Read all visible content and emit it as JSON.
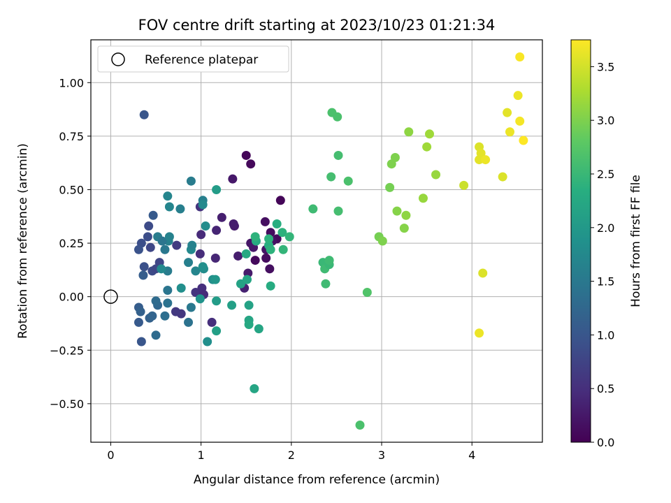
{
  "chart_data": {
    "type": "scatter",
    "title": "FOV centre drift starting at 2023/10/23 01:21:34",
    "xlabel": "Angular distance from reference (arcmin)",
    "ylabel": "Rotation from reference (arcmin)",
    "xlim": [
      -0.22,
      4.78
    ],
    "ylim": [
      -0.68,
      1.2
    ],
    "xticks": [
      0,
      1,
      2,
      3,
      4
    ],
    "yticks": [
      -0.5,
      -0.25,
      0.0,
      0.25,
      0.5,
      0.75,
      1.0
    ],
    "xtick_labels": [
      "0",
      "1",
      "2",
      "3",
      "4"
    ],
    "ytick_labels": [
      "−0.50",
      "−0.25",
      "0.00",
      "0.25",
      "0.50",
      "0.75",
      "1.00"
    ],
    "grid": true,
    "legend": {
      "position": "top-left",
      "entries": [
        "Reference platepar"
      ]
    },
    "reference_point": {
      "x": 0,
      "y": 0
    },
    "colorbar": {
      "label": "Hours from first FF file",
      "colormap": "viridis",
      "range": [
        0.0,
        3.75
      ],
      "ticks": [
        0.0,
        0.5,
        1.0,
        1.5,
        2.0,
        2.5,
        3.0,
        3.5
      ],
      "tick_labels": [
        "0.0",
        "0.5",
        "1.0",
        "1.5",
        "2.0",
        "2.5",
        "3.0",
        "3.5"
      ]
    },
    "points": [
      {
        "x": 1.5,
        "y": 0.66,
        "c": 0.05
      },
      {
        "x": 1.55,
        "y": 0.62,
        "c": 0.08
      },
      {
        "x": 1.35,
        "y": 0.55,
        "c": 0.25
      },
      {
        "x": 1.88,
        "y": 0.45,
        "c": 0.05
      },
      {
        "x": 1.23,
        "y": 0.37,
        "c": 0.32
      },
      {
        "x": 1.37,
        "y": 0.33,
        "c": 0.28
      },
      {
        "x": 1.36,
        "y": 0.34,
        "c": 0.3
      },
      {
        "x": 1.71,
        "y": 0.35,
        "c": 0.15
      },
      {
        "x": 1.17,
        "y": 0.31,
        "c": 0.38
      },
      {
        "x": 1.0,
        "y": 0.29,
        "c": 0.45
      },
      {
        "x": 1.77,
        "y": 0.3,
        "c": 0.12
      },
      {
        "x": 1.84,
        "y": 0.27,
        "c": 0.1
      },
      {
        "x": 1.79,
        "y": 0.26,
        "c": 0.18
      },
      {
        "x": 1.55,
        "y": 0.25,
        "c": 0.22
      },
      {
        "x": 1.58,
        "y": 0.23,
        "c": 0.25
      },
      {
        "x": 1.72,
        "y": 0.22,
        "c": 0.2
      },
      {
        "x": 1.41,
        "y": 0.19,
        "c": 0.3
      },
      {
        "x": 0.99,
        "y": 0.2,
        "c": 0.48
      },
      {
        "x": 1.72,
        "y": 0.18,
        "c": 0.12
      },
      {
        "x": 1.6,
        "y": 0.17,
        "c": 0.1
      },
      {
        "x": 1.16,
        "y": 0.18,
        "c": 0.4
      },
      {
        "x": 1.76,
        "y": 0.13,
        "c": 0.15
      },
      {
        "x": 1.52,
        "y": 0.11,
        "c": 0.28
      },
      {
        "x": 0.94,
        "y": 0.02,
        "c": 0.55
      },
      {
        "x": 1.01,
        "y": 0.04,
        "c": 0.5
      },
      {
        "x": 1.03,
        "y": 0.01,
        "c": 0.45
      },
      {
        "x": 1.48,
        "y": 0.04,
        "c": 0.35
      },
      {
        "x": 0.99,
        "y": 0.42,
        "c": 0.55
      },
      {
        "x": 0.78,
        "y": -0.08,
        "c": 0.6
      },
      {
        "x": 0.72,
        "y": -0.07,
        "c": 0.62
      },
      {
        "x": 1.12,
        "y": -0.12,
        "c": 0.5
      },
      {
        "x": 0.73,
        "y": 0.24,
        "c": 0.65
      },
      {
        "x": 0.37,
        "y": 0.85,
        "c": 1.0
      },
      {
        "x": 0.34,
        "y": 0.25,
        "c": 0.9
      },
      {
        "x": 0.42,
        "y": 0.33,
        "c": 0.85
      },
      {
        "x": 0.41,
        "y": 0.28,
        "c": 0.88
      },
      {
        "x": 0.44,
        "y": 0.23,
        "c": 0.8
      },
      {
        "x": 0.31,
        "y": 0.22,
        "c": 0.95
      },
      {
        "x": 0.37,
        "y": 0.14,
        "c": 0.92
      },
      {
        "x": 0.46,
        "y": 0.12,
        "c": 0.85
      },
      {
        "x": 0.5,
        "y": 0.13,
        "c": 0.8
      },
      {
        "x": 0.54,
        "y": 0.16,
        "c": 0.78
      },
      {
        "x": 0.47,
        "y": 0.38,
        "c": 1.05
      },
      {
        "x": 0.36,
        "y": 0.1,
        "c": 1.1
      },
      {
        "x": 0.31,
        "y": -0.05,
        "c": 1.1
      },
      {
        "x": 0.33,
        "y": -0.07,
        "c": 1.15
      },
      {
        "x": 0.31,
        "y": -0.12,
        "c": 1.05
      },
      {
        "x": 0.34,
        "y": -0.21,
        "c": 1.0
      },
      {
        "x": 0.43,
        "y": -0.1,
        "c": 1.15
      },
      {
        "x": 0.46,
        "y": -0.09,
        "c": 1.2
      },
      {
        "x": 0.52,
        "y": -0.04,
        "c": 1.25
      },
      {
        "x": 0.5,
        "y": -0.02,
        "c": 1.3
      },
      {
        "x": 0.5,
        "y": -0.18,
        "c": 1.3
      },
      {
        "x": 0.6,
        "y": -0.09,
        "c": 1.35
      },
      {
        "x": 0.63,
        "y": -0.03,
        "c": 1.4
      },
      {
        "x": 0.63,
        "y": 0.03,
        "c": 1.45
      },
      {
        "x": 0.86,
        "y": -0.12,
        "c": 1.4
      },
      {
        "x": 0.89,
        "y": -0.05,
        "c": 1.5
      },
      {
        "x": 0.63,
        "y": 0.12,
        "c": 1.55
      },
      {
        "x": 0.64,
        "y": 0.26,
        "c": 1.6
      },
      {
        "x": 0.6,
        "y": 0.22,
        "c": 1.5
      },
      {
        "x": 0.52,
        "y": 0.28,
        "c": 1.55
      },
      {
        "x": 0.57,
        "y": 0.26,
        "c": 1.45
      },
      {
        "x": 0.65,
        "y": 0.28,
        "c": 1.65
      },
      {
        "x": 0.77,
        "y": 0.41,
        "c": 1.6
      },
      {
        "x": 0.63,
        "y": 0.47,
        "c": 1.7
      },
      {
        "x": 0.65,
        "y": 0.42,
        "c": 1.7
      },
      {
        "x": 0.89,
        "y": 0.54,
        "c": 1.55
      },
      {
        "x": 0.86,
        "y": 0.16,
        "c": 1.6
      },
      {
        "x": 0.89,
        "y": 0.22,
        "c": 1.75
      },
      {
        "x": 0.9,
        "y": 0.24,
        "c": 1.65
      },
      {
        "x": 0.94,
        "y": 0.12,
        "c": 1.7
      },
      {
        "x": 1.02,
        "y": 0.45,
        "c": 1.6
      },
      {
        "x": 1.02,
        "y": 0.43,
        "c": 1.75
      },
      {
        "x": 1.05,
        "y": 0.33,
        "c": 1.8
      },
      {
        "x": 1.03,
        "y": 0.13,
        "c": 1.8
      },
      {
        "x": 1.13,
        "y": 0.08,
        "c": 1.85
      },
      {
        "x": 1.02,
        "y": 0.14,
        "c": 1.85
      },
      {
        "x": 0.99,
        "y": -0.01,
        "c": 1.9
      },
      {
        "x": 1.07,
        "y": -0.21,
        "c": 1.85
      },
      {
        "x": 0.78,
        "y": 0.04,
        "c": 1.85
      },
      {
        "x": 0.56,
        "y": 0.13,
        "c": 1.75
      },
      {
        "x": 1.16,
        "y": 0.08,
        "c": 1.95
      },
      {
        "x": 1.17,
        "y": 0.5,
        "c": 2.05
      },
      {
        "x": 1.17,
        "y": -0.02,
        "c": 2.05
      },
      {
        "x": 1.17,
        "y": -0.16,
        "c": 2.1
      },
      {
        "x": 1.34,
        "y": -0.04,
        "c": 2.1
      },
      {
        "x": 1.44,
        "y": 0.06,
        "c": 2.15
      },
      {
        "x": 1.51,
        "y": 0.08,
        "c": 2.2
      },
      {
        "x": 1.53,
        "y": -0.04,
        "c": 2.15
      },
      {
        "x": 1.53,
        "y": -0.11,
        "c": 2.2
      },
      {
        "x": 1.53,
        "y": -0.13,
        "c": 2.25
      },
      {
        "x": 1.64,
        "y": -0.15,
        "c": 2.2
      },
      {
        "x": 1.59,
        "y": -0.43,
        "c": 2.2
      },
      {
        "x": 1.5,
        "y": 0.2,
        "c": 2.25
      },
      {
        "x": 1.61,
        "y": 0.26,
        "c": 2.3
      },
      {
        "x": 1.75,
        "y": 0.24,
        "c": 2.35
      },
      {
        "x": 1.77,
        "y": 0.22,
        "c": 2.4
      },
      {
        "x": 1.77,
        "y": 0.05,
        "c": 2.3
      },
      {
        "x": 1.75,
        "y": 0.27,
        "c": 2.4
      },
      {
        "x": 1.84,
        "y": 0.34,
        "c": 2.35
      },
      {
        "x": 1.9,
        "y": 0.3,
        "c": 2.4
      },
      {
        "x": 1.91,
        "y": 0.22,
        "c": 2.45
      },
      {
        "x": 1.98,
        "y": 0.28,
        "c": 2.45
      },
      {
        "x": 1.6,
        "y": 0.28,
        "c": 2.4
      },
      {
        "x": 2.24,
        "y": 0.41,
        "c": 2.55
      },
      {
        "x": 2.35,
        "y": 0.16,
        "c": 2.5
      },
      {
        "x": 2.37,
        "y": 0.13,
        "c": 2.55
      },
      {
        "x": 2.42,
        "y": 0.15,
        "c": 2.5
      },
      {
        "x": 2.42,
        "y": 0.17,
        "c": 2.55
      },
      {
        "x": 2.38,
        "y": 0.06,
        "c": 2.55
      },
      {
        "x": 2.44,
        "y": 0.56,
        "c": 2.6
      },
      {
        "x": 2.45,
        "y": 0.86,
        "c": 2.65
      },
      {
        "x": 2.51,
        "y": 0.84,
        "c": 2.65
      },
      {
        "x": 2.52,
        "y": 0.66,
        "c": 2.6
      },
      {
        "x": 2.52,
        "y": 0.4,
        "c": 2.6
      },
      {
        "x": 2.63,
        "y": 0.54,
        "c": 2.65
      },
      {
        "x": 2.76,
        "y": -0.6,
        "c": 2.65
      },
      {
        "x": 2.84,
        "y": 0.02,
        "c": 2.7
      },
      {
        "x": 2.97,
        "y": 0.28,
        "c": 2.95
      },
      {
        "x": 3.01,
        "y": 0.26,
        "c": 3.0
      },
      {
        "x": 3.09,
        "y": 0.51,
        "c": 2.95
      },
      {
        "x": 3.11,
        "y": 0.62,
        "c": 3.0
      },
      {
        "x": 3.15,
        "y": 0.65,
        "c": 3.0
      },
      {
        "x": 3.17,
        "y": 0.4,
        "c": 3.05
      },
      {
        "x": 3.25,
        "y": 0.32,
        "c": 3.05
      },
      {
        "x": 3.27,
        "y": 0.38,
        "c": 3.1
      },
      {
        "x": 3.3,
        "y": 0.77,
        "c": 3.1
      },
      {
        "x": 3.46,
        "y": 0.46,
        "c": 3.15
      },
      {
        "x": 3.5,
        "y": 0.7,
        "c": 3.2
      },
      {
        "x": 3.53,
        "y": 0.76,
        "c": 3.2
      },
      {
        "x": 3.6,
        "y": 0.57,
        "c": 3.15
      },
      {
        "x": 3.91,
        "y": 0.52,
        "c": 3.45
      },
      {
        "x": 4.08,
        "y": 0.7,
        "c": 3.55
      },
      {
        "x": 4.08,
        "y": 0.64,
        "c": 3.6
      },
      {
        "x": 4.1,
        "y": 0.67,
        "c": 3.6
      },
      {
        "x": 4.15,
        "y": 0.64,
        "c": 3.65
      },
      {
        "x": 4.08,
        "y": -0.17,
        "c": 3.65
      },
      {
        "x": 4.12,
        "y": 0.11,
        "c": 3.55
      },
      {
        "x": 4.34,
        "y": 0.56,
        "c": 3.55
      },
      {
        "x": 4.39,
        "y": 0.86,
        "c": 3.6
      },
      {
        "x": 4.42,
        "y": 0.77,
        "c": 3.65
      },
      {
        "x": 4.51,
        "y": 0.94,
        "c": 3.65
      },
      {
        "x": 4.53,
        "y": 0.82,
        "c": 3.7
      },
      {
        "x": 4.53,
        "y": 1.12,
        "c": 3.72
      },
      {
        "x": 4.57,
        "y": 0.73,
        "c": 3.75
      }
    ]
  }
}
